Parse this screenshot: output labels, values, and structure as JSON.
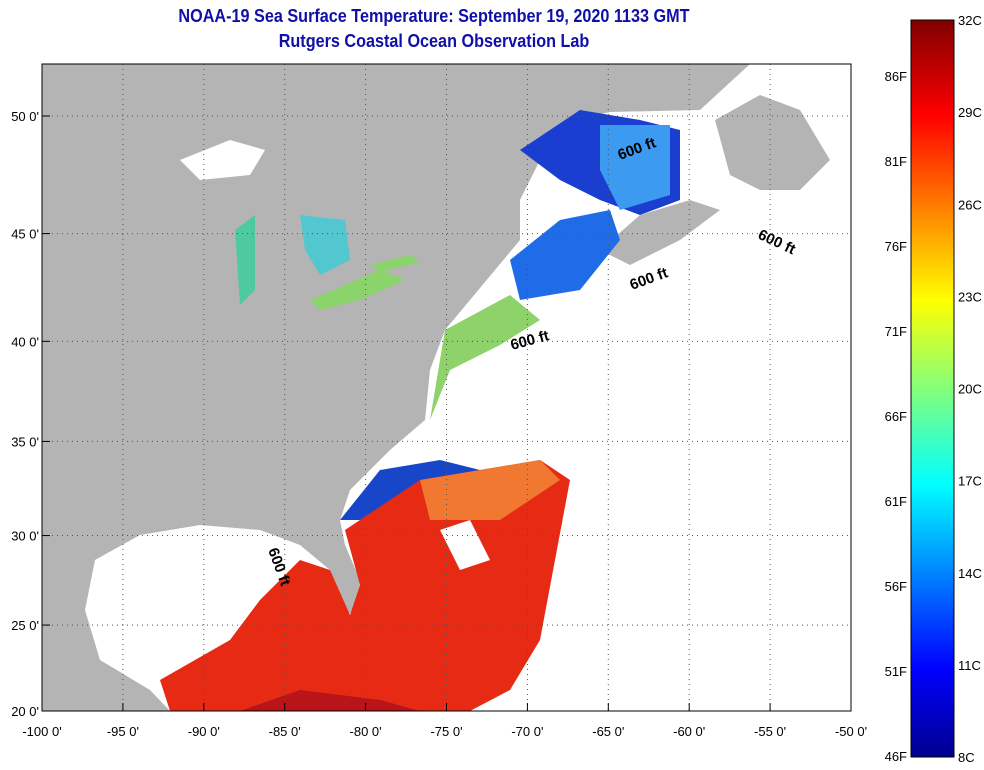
{
  "header": {
    "title": "NOAA-19 Sea Surface Temperature:  September 19, 2020 1133 GMT",
    "subtitle": "Rutgers Coastal Ocean Observation Lab"
  },
  "map": {
    "x_ticks": [
      "-100 0'",
      "-95 0'",
      "-90 0'",
      "-85 0'",
      "-80 0'",
      "-75 0'",
      "-70 0'",
      "-65 0'",
      "-60 0'",
      "-55 0'",
      "-50 0'"
    ],
    "y_ticks": [
      "50 0'",
      "45 0'",
      "40 0'",
      "35 0'",
      "30 0'",
      "25 0'",
      "20 0'"
    ],
    "y_tick_lats": [
      50,
      45,
      40,
      35,
      30,
      25,
      20
    ],
    "contour_labels": [
      "600 ft",
      "600 ft",
      "600 ft",
      "600 ft",
      "600 ft"
    ],
    "colors": {
      "land": "#b4b4b4",
      "ocean_nodata": "#ffffff"
    }
  },
  "colorbar": {
    "celsius": [
      "32C",
      "29C",
      "26C",
      "23C",
      "20C",
      "17C",
      "14C",
      "11C",
      "8C"
    ],
    "fahrenheit": [
      "86F",
      "81F",
      "76F",
      "71F",
      "66F",
      "61F",
      "56F",
      "51F",
      "46F"
    ],
    "range_c": [
      8,
      32
    ]
  }
}
